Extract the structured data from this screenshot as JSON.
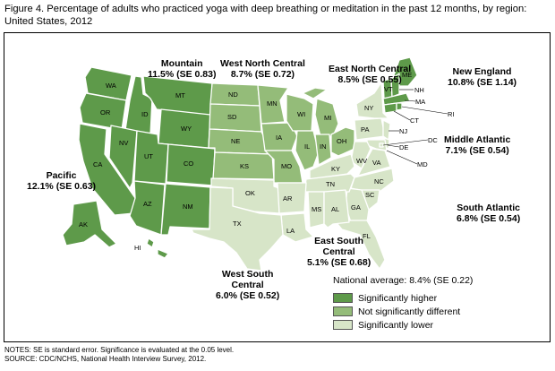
{
  "title": "Figure 4. Percentage of adults who practiced yoga with deep breathing or meditation in the past 12 months, by region: United States, 2012",
  "colors": {
    "higher": "#5e9a4a",
    "not_different": "#94bc79",
    "lower": "#d7e5c8",
    "border": "#ffffff"
  },
  "regions": {
    "mountain": {
      "name": "Mountain",
      "value": "11.5% (SE 0.83)"
    },
    "west_north_central": {
      "name": "West North Central",
      "value": "8.7% (SE 0.72)"
    },
    "east_north_central": {
      "name": "East North Central",
      "value": "8.5% (SE 0.55)"
    },
    "new_england": {
      "name": "New England",
      "value": "10.8% (SE 1.14)"
    },
    "pacific": {
      "name": "Pacific",
      "value": "12.1% (SE 0.63)"
    },
    "middle_atlantic": {
      "name": "Middle Atlantic",
      "value": "7.1% (SE 0.54)"
    },
    "south_atlantic": {
      "name": "South Atlantic",
      "value": "6.8% (SE 0.54)"
    },
    "east_south_central": {
      "name_line1": "East South",
      "name_line2": "Central",
      "value": "5.1% (SE 0.68)"
    },
    "west_south_central": {
      "name_line1": "West South",
      "name_line2": "Central",
      "value": "6.0% (SE 0.52)"
    }
  },
  "states": {
    "WA": "WA",
    "OR": "OR",
    "CA": "CA",
    "AK": "AK",
    "HI": "HI",
    "ID": "ID",
    "MT": "MT",
    "WY": "WY",
    "NV": "NV",
    "UT": "UT",
    "CO": "CO",
    "AZ": "AZ",
    "NM": "NM",
    "ND": "ND",
    "SD": "SD",
    "NE": "NE",
    "KS": "KS",
    "MN": "MN",
    "IA": "IA",
    "MO": "MO",
    "WI": "WI",
    "MI": "MI",
    "IL": "IL",
    "IN": "IN",
    "OH": "OH",
    "ME": "ME",
    "VT": "VT",
    "NH": "NH",
    "MA": "MA",
    "RI": "RI",
    "CT": "CT",
    "NY": "NY",
    "PA": "PA",
    "NJ": "NJ",
    "DE": "DE",
    "DC": "DC",
    "MD": "MD",
    "WV": "WV",
    "VA": "VA",
    "NC": "NC",
    "SC": "SC",
    "GA": "GA",
    "FL": "FL",
    "KY": "KY",
    "TN": "TN",
    "MS": "MS",
    "AL": "AL",
    "OK": "OK",
    "TX": "TX",
    "AR": "AR",
    "LA": "LA"
  },
  "legend": {
    "national_average": "National average: 8.4% (SE 0.22)",
    "higher": "Significantly higher",
    "not_different": "Not significantly different",
    "lower": "Significantly lower"
  },
  "notes": {
    "line1": "NOTES: SE is standard error. Significance is evaluated at the 0.05 level.",
    "line2": "SOURCE: CDC/NCHS, National Health Interview Survey, 2012."
  }
}
